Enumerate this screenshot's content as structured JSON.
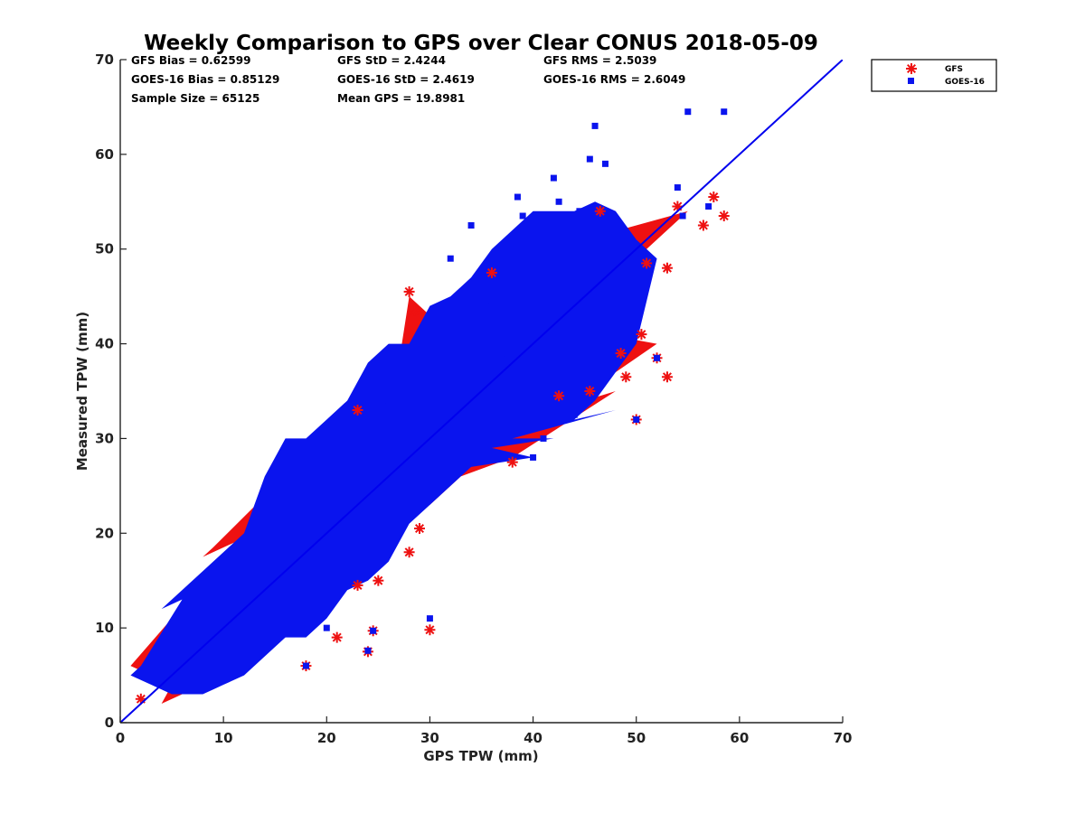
{
  "chart_data": {
    "type": "scatter",
    "title": "Weekly Comparison to GPS over Clear CONUS 2018-05-09",
    "xlabel": "GPS TPW (mm)",
    "ylabel": "Measured TPW (mm)",
    "xlim": [
      0,
      70
    ],
    "ylim": [
      0,
      70
    ],
    "xticks": [
      "0",
      "10",
      "20",
      "30",
      "40",
      "50",
      "60",
      "70"
    ],
    "yticks": [
      "0",
      "10",
      "20",
      "30",
      "40",
      "50",
      "60",
      "70"
    ],
    "grid": false,
    "legend_position": "outside-top-right",
    "stats": [
      [
        "GFS Bias = 0.62599",
        "GFS StD = 2.4244",
        "GFS RMS = 2.5039"
      ],
      [
        "GOES-16 Bias = 0.85129",
        "GOES-16 StD = 2.4619",
        "GOES-16 RMS = 2.6049"
      ],
      [
        "Sample Size = 65125",
        "Mean GPS = 19.8981",
        ""
      ]
    ],
    "reference_line": {
      "x": [
        0,
        70
      ],
      "y": [
        0,
        70
      ],
      "color": "#0000ee"
    },
    "series": [
      {
        "name": "GFS",
        "marker": "asterisk",
        "color": "#ee1111",
        "cloud": [
          [
            1.0,
            6.0
          ],
          [
            3.0,
            5.0
          ],
          [
            4.0,
            2.0
          ],
          [
            5.0,
            4.0
          ],
          [
            6.0,
            3.0
          ],
          [
            8.0,
            17.5
          ],
          [
            9.0,
            18.5
          ],
          [
            10.0,
            5.0
          ],
          [
            12.0,
            19.0
          ],
          [
            13.0,
            20.0
          ],
          [
            14.0,
            8.0
          ],
          [
            15.0,
            25.0
          ],
          [
            16.0,
            26.0
          ],
          [
            18.0,
            10.0
          ],
          [
            17.0,
            29.0
          ],
          [
            18.0,
            29.5
          ],
          [
            20.0,
            12.0
          ],
          [
            22.0,
            14.5
          ],
          [
            25.0,
            33.0
          ],
          [
            27.0,
            38.0
          ],
          [
            28.0,
            45.0
          ],
          [
            30.0,
            23.0
          ],
          [
            33.0,
            26.0
          ],
          [
            35.0,
            44.0
          ],
          [
            38.0,
            28.0
          ],
          [
            42.0,
            33.0
          ],
          [
            45.0,
            51.0
          ],
          [
            48.0,
            35.0
          ],
          [
            50.0,
            45.0
          ],
          [
            52.0,
            40.0
          ],
          [
            53.0,
            52.0
          ],
          [
            55.0,
            54.0
          ],
          [
            44.0,
            34.0
          ],
          [
            40.0,
            46.0
          ],
          [
            36.0,
            43.0
          ],
          [
            32.0,
            41.0
          ],
          [
            24.0,
            17.0
          ],
          [
            26.0,
            21.0
          ],
          [
            11.0,
            17.0
          ],
          [
            7.0,
            14.0
          ],
          [
            5.0,
            11.0
          ],
          [
            47.0,
            41.0
          ],
          [
            50.0,
            49.0
          ]
        ],
        "points": [
          [
            2.0,
            2.5
          ],
          [
            18.0,
            6.0
          ],
          [
            21.0,
            9.0
          ],
          [
            24.0,
            7.5
          ],
          [
            24.5,
            9.7
          ],
          [
            30.0,
            9.8
          ],
          [
            29.0,
            20.5
          ],
          [
            28.0,
            18.0
          ],
          [
            25.0,
            15.0
          ],
          [
            23.0,
            14.5
          ],
          [
            23.0,
            33.0
          ],
          [
            28.0,
            45.5
          ],
          [
            28.5,
            43.5
          ],
          [
            36.0,
            47.5
          ],
          [
            38.0,
            27.5
          ],
          [
            50.0,
            32.0
          ],
          [
            53.0,
            36.5
          ],
          [
            49.0,
            36.5
          ],
          [
            52.0,
            38.5
          ],
          [
            53.0,
            48.0
          ],
          [
            54.0,
            54.5
          ],
          [
            56.5,
            52.5
          ],
          [
            57.5,
            55.5
          ],
          [
            58.5,
            53.5
          ],
          [
            46.5,
            54.0
          ],
          [
            42.5,
            34.5
          ],
          [
            45.5,
            35.0
          ],
          [
            48.5,
            39.0
          ],
          [
            50.5,
            41.0
          ],
          [
            51.0,
            48.5
          ]
        ]
      },
      {
        "name": "GOES-16",
        "marker": "square",
        "color": "#0a14ee",
        "cloud": [
          [
            1.0,
            5.0
          ],
          [
            2.0,
            6.0
          ],
          [
            3.0,
            4.0
          ],
          [
            4.0,
            12.0
          ],
          [
            5.0,
            3.0
          ],
          [
            6.0,
            13.0
          ],
          [
            8.0,
            16.0
          ],
          [
            10.0,
            18.0
          ],
          [
            12.0,
            20.0
          ],
          [
            14.0,
            26.0
          ],
          [
            16.0,
            30.0
          ],
          [
            18.0,
            30.0
          ],
          [
            20.0,
            32.0
          ],
          [
            22.0,
            34.0
          ],
          [
            24.0,
            38.0
          ],
          [
            26.0,
            40.0
          ],
          [
            28.0,
            40.0
          ],
          [
            30.0,
            44.0
          ],
          [
            32.0,
            45.0
          ],
          [
            34.0,
            47.0
          ],
          [
            36.0,
            50.0
          ],
          [
            38.0,
            52.0
          ],
          [
            40.0,
            54.0
          ],
          [
            42.0,
            54.0
          ],
          [
            44.0,
            54.0
          ],
          [
            46.0,
            55.0
          ],
          [
            48.0,
            54.0
          ],
          [
            50.0,
            51.0
          ],
          [
            52.0,
            49.0
          ],
          [
            50.0,
            40.0
          ],
          [
            48.0,
            33.0
          ],
          [
            46.0,
            34.0
          ],
          [
            44.0,
            32.0
          ],
          [
            42.0,
            30.0
          ],
          [
            40.0,
            28.0
          ],
          [
            38.0,
            30.0
          ],
          [
            36.0,
            29.0
          ],
          [
            34.0,
            27.0
          ],
          [
            32.0,
            25.0
          ],
          [
            30.0,
            23.0
          ],
          [
            28.0,
            21.0
          ],
          [
            26.0,
            17.0
          ],
          [
            24.0,
            15.0
          ],
          [
            22.0,
            14.0
          ],
          [
            20.0,
            11.0
          ],
          [
            18.0,
            9.0
          ],
          [
            16.0,
            9.0
          ],
          [
            14.0,
            7.0
          ],
          [
            12.0,
            5.0
          ],
          [
            10.0,
            4.0
          ],
          [
            8.0,
            3.0
          ],
          [
            6.0,
            3.0
          ]
        ],
        "points": [
          [
            18.0,
            6.0
          ],
          [
            20.0,
            10.0
          ],
          [
            24.0,
            7.6
          ],
          [
            24.5,
            9.7
          ],
          [
            30.0,
            11.0
          ],
          [
            46.0,
            63.0
          ],
          [
            47.0,
            59.0
          ],
          [
            45.5,
            59.5
          ],
          [
            42.0,
            57.5
          ],
          [
            38.5,
            55.5
          ],
          [
            39.0,
            53.5
          ],
          [
            34.0,
            52.5
          ],
          [
            32.0,
            49.0
          ],
          [
            26.0,
            34.0
          ],
          [
            37.0,
            39.0
          ],
          [
            40.0,
            28.0
          ],
          [
            41.0,
            30.0
          ],
          [
            50.0,
            32.0
          ],
          [
            52.0,
            38.5
          ],
          [
            54.0,
            56.5
          ],
          [
            55.0,
            64.5
          ],
          [
            58.5,
            64.5
          ],
          [
            57.0,
            54.5
          ],
          [
            54.5,
            53.5
          ],
          [
            42.5,
            55.0
          ],
          [
            44.5,
            54.0
          ],
          [
            36.0,
            44.0
          ],
          [
            42.0,
            33.0
          ],
          [
            44.0,
            32.5
          ]
        ]
      }
    ]
  }
}
